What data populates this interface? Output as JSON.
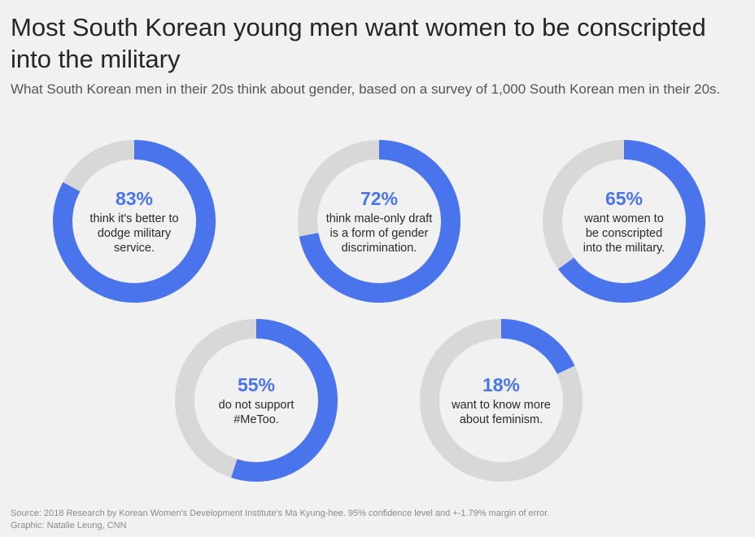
{
  "title": "Most South Korean young men want women to be conscripted into the military",
  "subtitle": "What South Korean men in their 20s think about gender, based on a survey of 1,000 South Korean men in their 20s.",
  "colors": {
    "fill": "#4a74ec",
    "track": "#d8d8d8",
    "background": "#f1f1f1"
  },
  "chart_data": {
    "type": "pie",
    "items": [
      {
        "value": 83,
        "value_label": "83%",
        "label": "think it's better to dodge military service."
      },
      {
        "value": 72,
        "value_label": "72%",
        "label": "think male-only draft is a form of gender discrimination."
      },
      {
        "value": 65,
        "value_label": "65%",
        "label": "want women to be conscripted into the military."
      },
      {
        "value": 55,
        "value_label": "55%",
        "label": "do not support #MeToo."
      },
      {
        "value": 18,
        "value_label": "18%",
        "label": "want to know more about feminism."
      }
    ]
  },
  "source": {
    "line1": "Source: 2018 Research by Korean Women's Development Institute's Ma Kyung-hee. 95% confidence level and +-1.79% margin of error.",
    "line2": "Graphic: Natalie Leung, CNN"
  }
}
